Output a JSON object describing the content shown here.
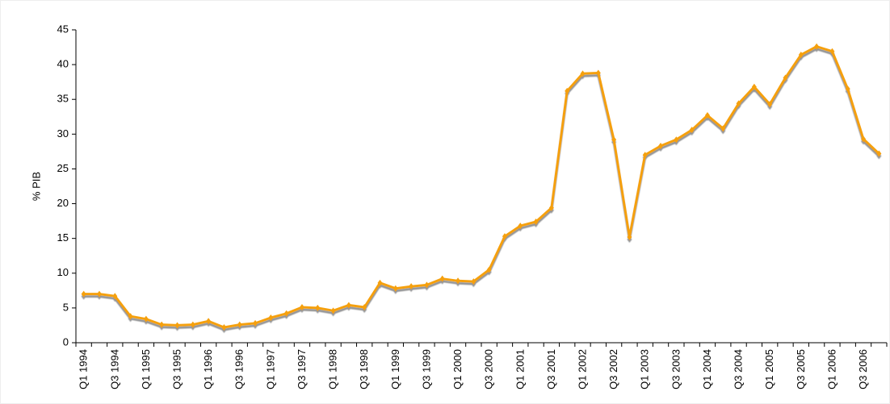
{
  "chart_data": {
    "type": "line",
    "y_label": "% PIB",
    "categories": [
      "Q1 1994",
      null,
      "Q3 1994",
      null,
      "Q1 1995",
      null,
      "Q3 1995",
      null,
      "Q1 1996",
      null,
      "Q3 1996",
      null,
      "Q1 1997",
      null,
      "Q3 1997",
      null,
      "Q1 1998",
      null,
      "Q3 1998",
      null,
      "Q1 1999",
      null,
      "Q3 1999",
      null,
      "Q1 2000",
      null,
      "Q3 2000",
      null,
      "Q1 2001",
      null,
      "Q3 2001",
      null,
      "Q1 2002",
      null,
      "Q3 2002",
      null,
      "Q1 2003",
      null,
      "Q3 2003",
      null,
      "Q1 2004",
      null,
      "Q3 2004",
      null,
      "Q1 2005",
      null,
      "Q3 2005",
      null,
      "Q1 2006",
      null,
      "Q3 2006",
      null
    ],
    "values": [
      7.0,
      7.0,
      6.7,
      3.8,
      3.4,
      2.6,
      2.5,
      2.6,
      3.1,
      2.2,
      2.6,
      2.8,
      3.6,
      4.2,
      5.1,
      5.0,
      4.6,
      5.4,
      5.1,
      8.6,
      7.8,
      8.1,
      8.3,
      9.2,
      8.9,
      8.8,
      10.5,
      15.3,
      16.8,
      17.4,
      19.4,
      36.2,
      38.7,
      38.8,
      29.2,
      15.2,
      27.0,
      28.3,
      29.2,
      30.6,
      32.7,
      30.8,
      34.4,
      36.8,
      34.3,
      38.1,
      41.4,
      42.6,
      41.9,
      36.5,
      29.3,
      27.2
    ],
    "color": "#f5a00c",
    "ylim": [
      0,
      45
    ],
    "yticks": [
      0,
      5,
      10,
      15,
      20,
      25,
      30,
      35,
      40,
      45
    ]
  }
}
